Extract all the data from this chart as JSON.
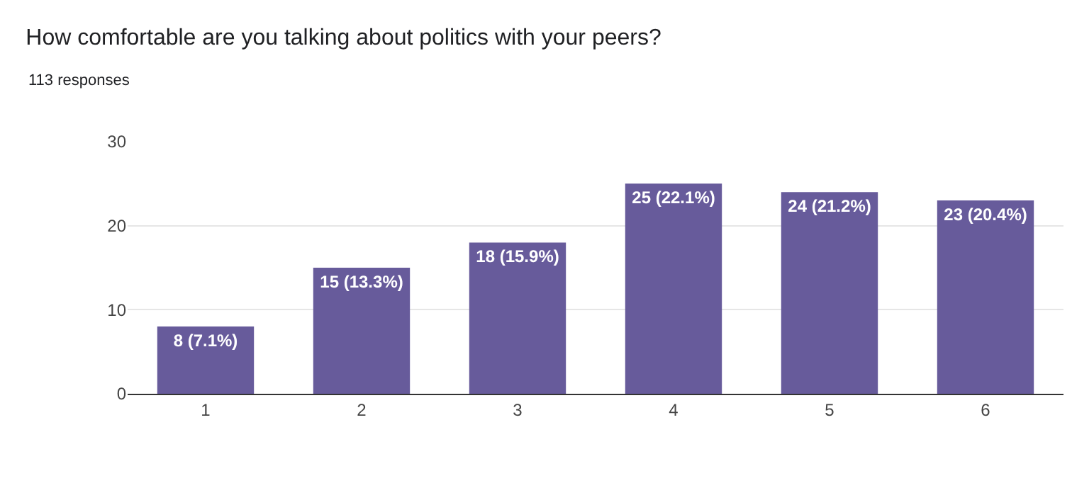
{
  "chart_data": {
    "type": "bar",
    "title": "How comfortable are you talking about politics with your peers?",
    "subtitle": "113 responses",
    "categories": [
      "1",
      "2",
      "3",
      "4",
      "5",
      "6"
    ],
    "values": [
      8,
      15,
      18,
      25,
      24,
      23
    ],
    "value_labels": [
      "8 (7.1%)",
      "15 (13.3%)",
      "18 (15.9%)",
      "25 (22.1%)",
      "24 (21.2%)",
      "23 (20.4%)"
    ],
    "color": "#675b9b",
    "ylim": [
      0,
      30
    ],
    "yticks": [
      0,
      10,
      20,
      30
    ],
    "grid": "y",
    "legend": false
  }
}
